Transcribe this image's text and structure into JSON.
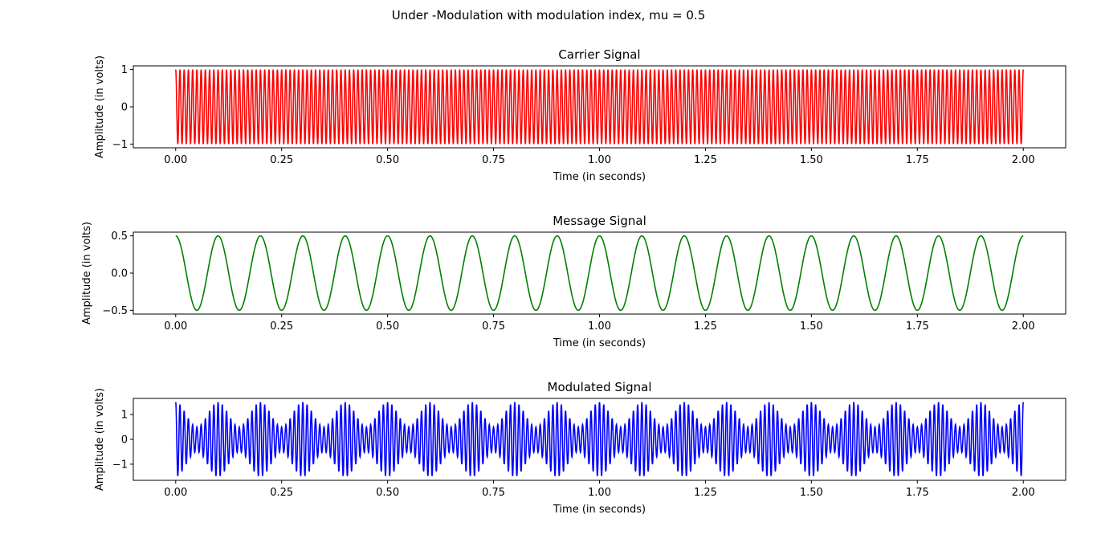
{
  "figure": {
    "suptitle": "Under -Modulation with modulation index, mu =  0.5"
  },
  "chart_data": [
    {
      "type": "line",
      "title": "Carrier Signal",
      "xlabel": "Time (in seconds)",
      "ylabel": "Amplitude (in volts)",
      "xlim": [
        -0.1,
        2.1
      ],
      "ylim": [
        -1.1,
        1.1
      ],
      "xticks": [
        0.0,
        0.25,
        0.5,
        0.75,
        1.0,
        1.25,
        1.5,
        1.75,
        2.0
      ],
      "xtick_labels": [
        "0.00",
        "0.25",
        "0.50",
        "0.75",
        "1.00",
        "1.25",
        "1.50",
        "1.75",
        "2.00"
      ],
      "yticks": [
        1,
        0,
        -1
      ],
      "ytick_labels": [
        "1",
        "0",
        "−1"
      ],
      "grid": false,
      "color": "#ff0000",
      "function": "cos(2*pi*100*t)",
      "series": [
        {
          "amplitude": 1.0,
          "frequency_hz": 100,
          "t_start": 0.0,
          "t_end": 2.0
        }
      ]
    },
    {
      "type": "line",
      "title": "Message Signal",
      "xlabel": "Time (in seconds)",
      "ylabel": "Amplitude (in volts)",
      "xlim": [
        -0.1,
        2.1
      ],
      "ylim": [
        -0.55,
        0.55
      ],
      "xticks": [
        0.0,
        0.25,
        0.5,
        0.75,
        1.0,
        1.25,
        1.5,
        1.75,
        2.0
      ],
      "xtick_labels": [
        "0.00",
        "0.25",
        "0.50",
        "0.75",
        "1.00",
        "1.25",
        "1.50",
        "1.75",
        "2.00"
      ],
      "yticks": [
        0.5,
        0.0,
        -0.5
      ],
      "ytick_labels": [
        "0.5",
        "0.0",
        "−0.5"
      ],
      "grid": false,
      "color": "#008000",
      "function": "0.5*cos(2*pi*10*t)",
      "series": [
        {
          "amplitude": 0.5,
          "frequency_hz": 10,
          "t_start": 0.0,
          "t_end": 2.0
        }
      ]
    },
    {
      "type": "line",
      "title": "Modulated Signal",
      "xlabel": "Time (in seconds)",
      "ylabel": "Amplitude (in volts)",
      "xlim": [
        -0.1,
        2.1
      ],
      "ylim": [
        -1.65,
        1.65
      ],
      "xticks": [
        0.0,
        0.25,
        0.5,
        0.75,
        1.0,
        1.25,
        1.5,
        1.75,
        2.0
      ],
      "xtick_labels": [
        "0.00",
        "0.25",
        "0.50",
        "0.75",
        "1.00",
        "1.25",
        "1.50",
        "1.75",
        "2.00"
      ],
      "yticks": [
        1,
        0,
        -1
      ],
      "ytick_labels": [
        "1",
        "0",
        "−1"
      ],
      "grid": false,
      "color": "#0000ff",
      "function": "(1 + 0.5*cos(2*pi*10*t)) * cos(2*pi*100*t)",
      "series": [
        {
          "carrier_amplitude": 1.0,
          "carrier_frequency_hz": 100,
          "modulation_index": 0.5,
          "message_frequency_hz": 10,
          "t_start": 0.0,
          "t_end": 2.0
        }
      ]
    }
  ]
}
